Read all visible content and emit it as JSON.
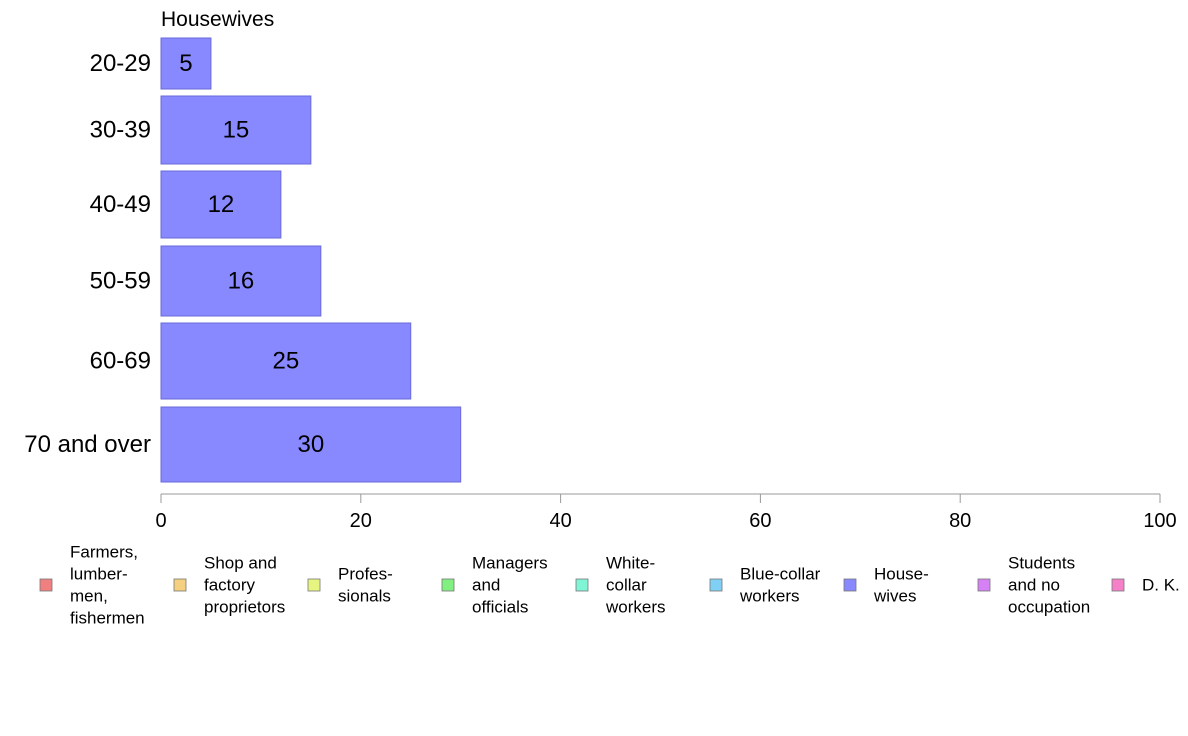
{
  "chart_data": {
    "type": "bar",
    "orientation": "horizontal",
    "title": "Housewives",
    "categories": [
      "20-29",
      "30-39",
      "40-49",
      "50-59",
      "60-69",
      "70 and over"
    ],
    "series": [
      {
        "name": "House-\nwives",
        "color": "#8888ff",
        "values": [
          5,
          15,
          12,
          16,
          25,
          30
        ]
      }
    ],
    "xlim": [
      0,
      100
    ],
    "xticks": [
      0,
      20,
      40,
      60,
      80,
      100
    ],
    "grid": false,
    "legend": {
      "placement": "bottom",
      "entries": [
        {
          "label": "Farmers,\nlumber-\nmen,\nfishermen",
          "color": "#f08080"
        },
        {
          "label": "Shop and\nfactory\nproprietors",
          "color": "#f5d080"
        },
        {
          "label": "Profes-\nsionals",
          "color": "#e6f580"
        },
        {
          "label": "Managers\nand\nofficials",
          "color": "#80f080"
        },
        {
          "label": "White-\ncollar\nworkers",
          "color": "#80f5d6"
        },
        {
          "label": "Blue-collar\nworkers",
          "color": "#80d0f5"
        },
        {
          "label": "House-\nwives",
          "color": "#8888ff"
        },
        {
          "label": "Students\nand no\noccupation",
          "color": "#d680f5"
        },
        {
          "label": "D. K.",
          "color": "#f580c8"
        }
      ]
    }
  }
}
